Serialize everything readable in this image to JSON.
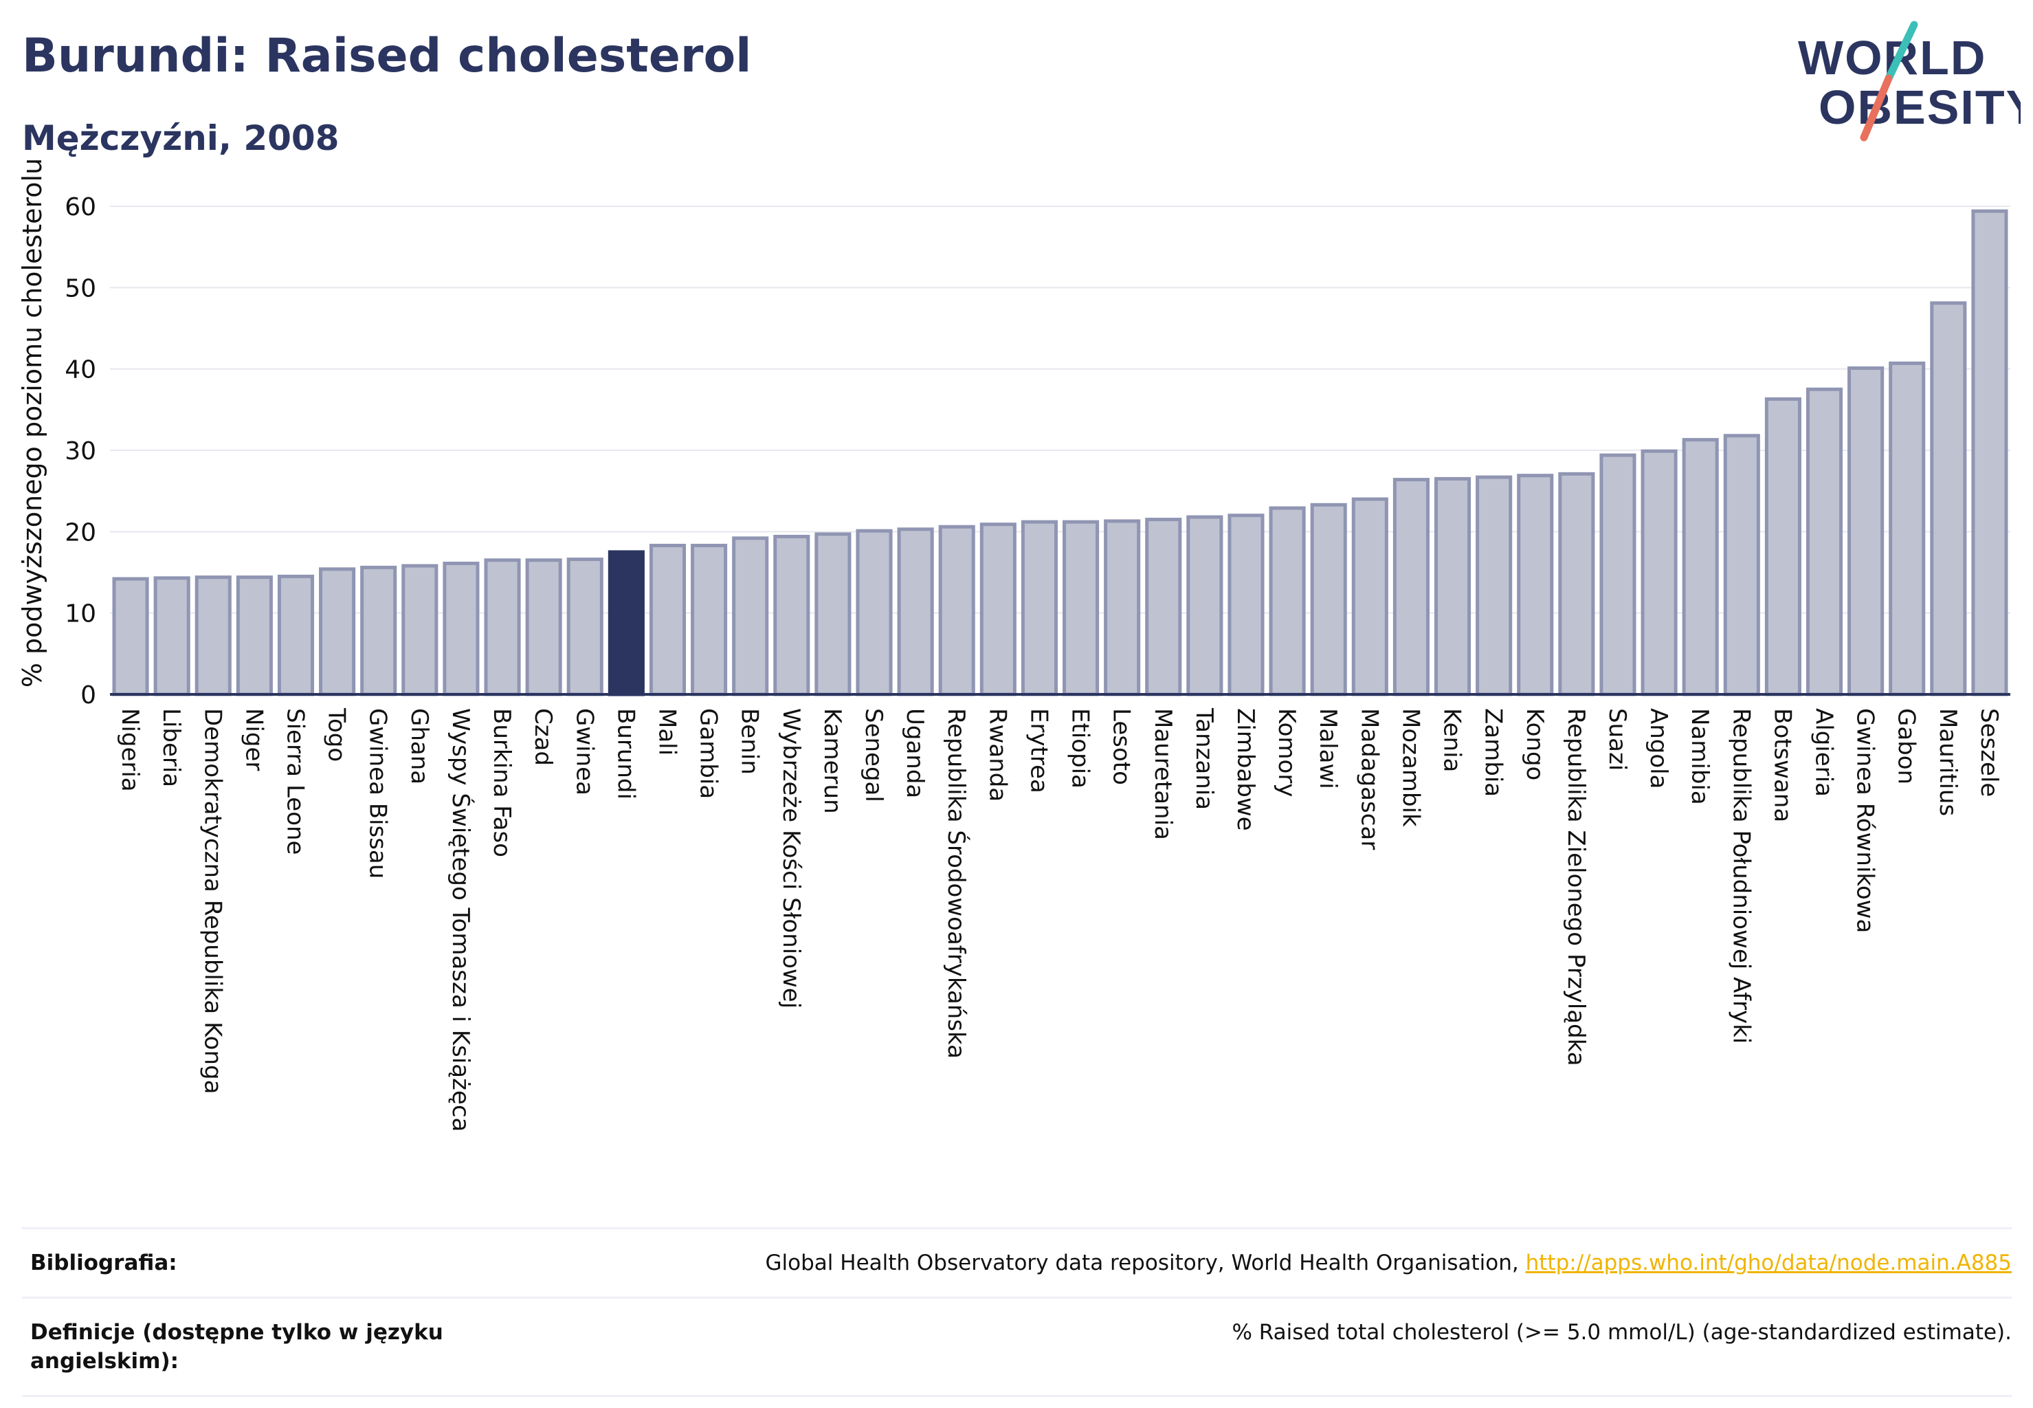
{
  "header": {
    "title": "Burundi: Raised cholesterol",
    "subtitle": "Mężczyźni, 2008"
  },
  "logo": {
    "line1": "WORLD",
    "line2": "OBESITY"
  },
  "colors": {
    "bar": "#bfc3d1",
    "bar_stroke": "#8f95b2",
    "highlight": "#2b3560",
    "grid": "#e8e8ee",
    "axis": "#2b3560",
    "logo_slash_teal": "#3bbfb7",
    "logo_slash_red": "#e8705c",
    "link": "#f0b400"
  },
  "chart_data": {
    "type": "bar",
    "title": "Burundi: Raised cholesterol",
    "subtitle": "Mężczyźni, 2008",
    "xlabel": "",
    "ylabel": "% podwyższonego poziomu cholesterolu",
    "ylim": [
      0,
      60
    ],
    "yticks": [
      0,
      10,
      20,
      30,
      40,
      50,
      60
    ],
    "grid": true,
    "highlight": "Burundi",
    "categories": [
      "Nigeria",
      "Liberia",
      "Demokratyczna Republika Konga",
      "Niger",
      "Sierra Leone",
      "Togo",
      "Gwinea Bissau",
      "Ghana",
      "Wyspy Świętego Tomasza i Książęca",
      "Burkina Faso",
      "Czad",
      "Gwinea",
      "Burundi",
      "Mali",
      "Gambia",
      "Benin",
      "Wybrzeże Kości Słoniowej",
      "Kamerun",
      "Senegal",
      "Uganda",
      "Republika Środowoafrykańska",
      "Rwanda",
      "Erytrea",
      "Etiopia",
      "Lesoto",
      "Mauretania",
      "Tanzania",
      "Zimbabwe",
      "Komory",
      "Malawi",
      "Madagascar",
      "Mozambik",
      "Kenia",
      "Zambia",
      "Kongo",
      "Republika Zielonego Przylądka",
      "Suazi",
      "Angola",
      "Namibia",
      "Republika Południowej Afryki",
      "Botswana",
      "Algieria",
      "Gwinea Równikowa",
      "Gabon",
      "Mauritius",
      "Seszele"
    ],
    "values": [
      14.2,
      14.3,
      14.4,
      14.4,
      14.5,
      15.4,
      15.6,
      15.8,
      16.1,
      16.5,
      16.5,
      16.6,
      17.5,
      18.3,
      18.3,
      19.2,
      19.4,
      19.7,
      20.1,
      20.3,
      20.6,
      20.9,
      21.2,
      21.2,
      21.3,
      21.5,
      21.8,
      22.0,
      22.9,
      23.3,
      24.0,
      26.4,
      26.5,
      26.7,
      26.9,
      27.1,
      29.4,
      29.9,
      31.3,
      31.8,
      36.3,
      37.5,
      40.1,
      40.7,
      48.1,
      59.4
    ]
  },
  "sources": {
    "bibliography_label": "Bibliografia:",
    "bibliography_text": "Global Health Observatory data repository, World Health Organisation, ",
    "bibliography_link": "http://apps.who.int/gho/data/node.main.A885",
    "definitions_label": "Definicje (dostępne tylko w języku angielskim):",
    "definitions_text": "% Raised total cholesterol (>= 5.0 mmol/L) (age-standardized estimate)."
  }
}
